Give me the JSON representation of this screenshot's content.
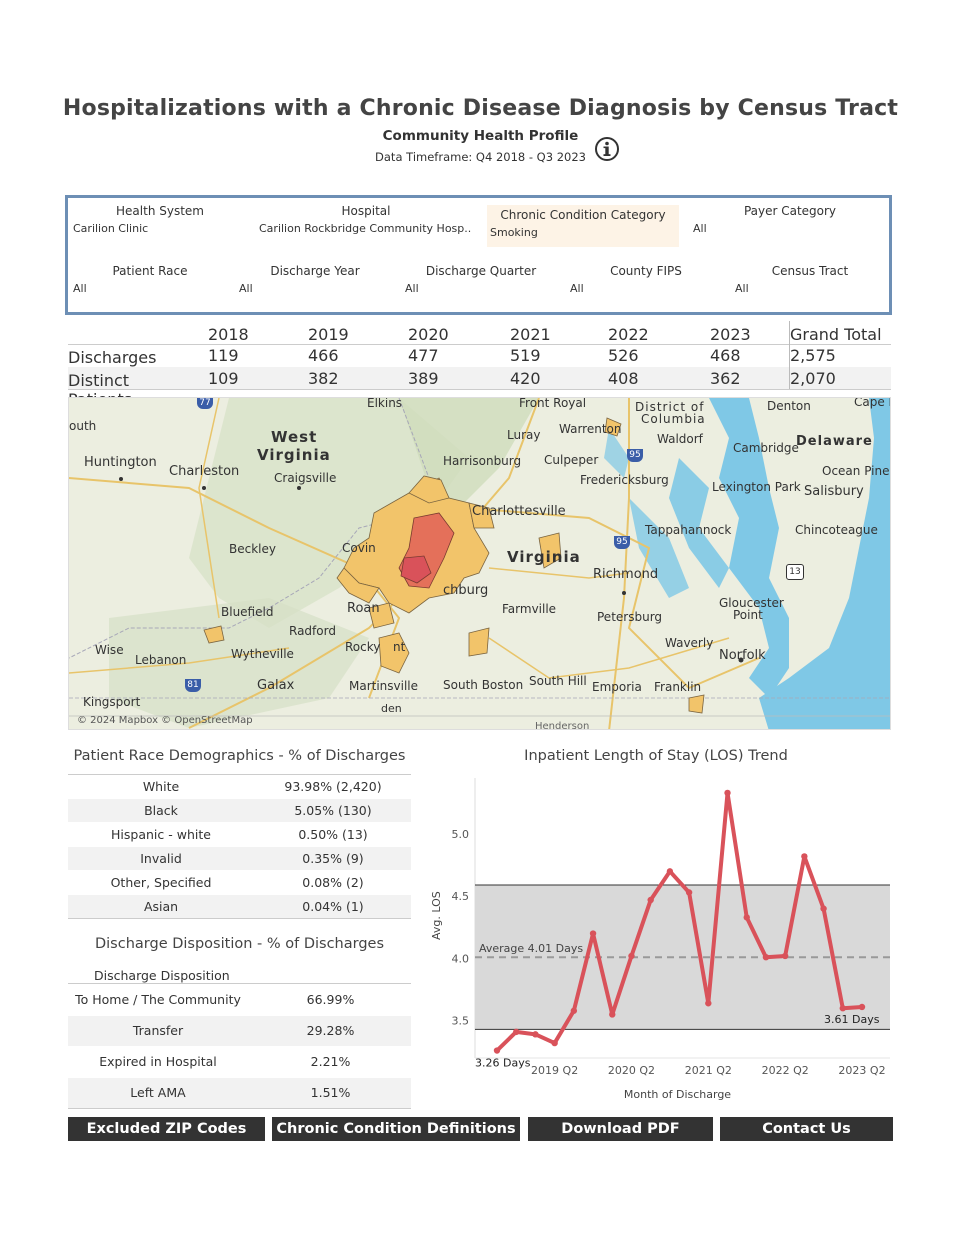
{
  "header": {
    "title": "Hospitalizations with a Chronic Disease Diagnosis by Census Tract",
    "subtitle": "Community Health Profile",
    "timeframe": "Data Timeframe: Q4 2018 - Q3 2023"
  },
  "filters": {
    "health_system": {
      "label": "Health System",
      "value": "Carilion Clinic"
    },
    "hospital": {
      "label": "Hospital",
      "value": "Carilion Rockbridge Community Hosp.."
    },
    "chronic_condition": {
      "label": "Chronic Condition Category",
      "value": "Smoking"
    },
    "payer_category": {
      "label": "Payer Category",
      "value": "All"
    },
    "patient_race": {
      "label": "Patient Race",
      "value": "All"
    },
    "discharge_year": {
      "label": "Discharge Year",
      "value": "All"
    },
    "discharge_quarter": {
      "label": "Discharge Quarter",
      "value": "All"
    },
    "county_fips": {
      "label": "County FIPS",
      "value": "All"
    },
    "census_tract": {
      "label": "Census Tract",
      "value": "All"
    }
  },
  "summary": {
    "columns": [
      "2018",
      "2019",
      "2020",
      "2021",
      "2022",
      "2023",
      "Grand Total"
    ],
    "rows": [
      {
        "label": "Discharges",
        "values": [
          "119",
          "466",
          "477",
          "519",
          "526",
          "468",
          "2,575"
        ]
      },
      {
        "label": "Distinct Patients",
        "values": [
          "109",
          "382",
          "389",
          "420",
          "408",
          "362",
          "2,070"
        ]
      }
    ]
  },
  "map": {
    "attribution": "© 2024 Mapbox © OpenStreetMap",
    "labels": {
      "west_virginia_1": "West",
      "west_virginia_2": "Virginia",
      "virginia": "Virginia",
      "delaware": "Delaware",
      "dc_1": "District of",
      "dc_2": "Columbia",
      "huntington": "Huntington",
      "charleston": "Charleston",
      "craigsville": "Craigsville",
      "beckley": "Beckley",
      "bluefield": "Bluefield",
      "radford": "Radford",
      "wytheville": "Wytheville",
      "lebanon": "Lebanon",
      "wise": "Wise",
      "galax": "Galax",
      "kingsport": "Kingsport",
      "martinsville": "Martinsville",
      "south_boston": "South Boston",
      "south_hill": "South Hill",
      "emporia": "Emporia",
      "franklin": "Franklin",
      "norfolk": "Norfolk",
      "waverly": "Waverly",
      "petersburg": "Petersburg",
      "richmond": "Richmond",
      "farmville": "Farmville",
      "lynchburg": "chburg",
      "roanoke": "Roan",
      "rocky_mount": "Rocky",
      "covington": "Covin",
      "charlottesville": "Charlottesville",
      "harrisonburg": "Harrisonburg",
      "culpeper": "Culpeper",
      "luray": "Luray",
      "warrenton": "Warrenton",
      "front_royal": "Front Royal",
      "elkins": "Elkins",
      "fredericksburg": "Fredericksburg",
      "waldorf": "Waldorf",
      "cambridge": "Cambridge",
      "lexington_park": "Lexington Park",
      "salisbury": "Salisbury",
      "ocean_pines": "Ocean Pines",
      "chincoteague": "Chincoteague",
      "tappahannock": "Tappahannock",
      "gloucester_1": "Gloucester",
      "gloucester_2": "Point",
      "denton": "Denton",
      "cape_may": "Cape M",
      "south": "outh",
      "hwy77": "77",
      "hwy81": "81",
      "hwy95a": "95",
      "hwy95b": "95",
      "hwy13": "13",
      "henderson": "Henderson",
      "eden": "den",
      "mount": "nt"
    }
  },
  "race": {
    "title": "Patient Race Demographics - % of Discharges",
    "rows": [
      {
        "label": "White",
        "value": "93.98% (2,420)"
      },
      {
        "label": "Black",
        "value": "5.05% (130)"
      },
      {
        "label": "Hispanic - white",
        "value": "0.50% (13)"
      },
      {
        "label": "Invalid",
        "value": "0.35% (9)"
      },
      {
        "label": "Other, Specified",
        "value": "0.08% (2)"
      },
      {
        "label": "Asian",
        "value": "0.04% (1)"
      }
    ]
  },
  "disposition": {
    "title": "Discharge Disposition - % of Discharges",
    "column_header": "Discharge Disposition",
    "rows": [
      {
        "label": "To Home / The Community",
        "value": "66.99%"
      },
      {
        "label": "Transfer",
        "value": "29.28%"
      },
      {
        "label": "Expired in Hospital",
        "value": "2.21%"
      },
      {
        "label": "Left AMA",
        "value": "1.51%"
      }
    ]
  },
  "chart_data": {
    "type": "line",
    "title": "Inpatient Length of Stay (LOS) Trend",
    "xlabel": "Month of Discharge",
    "ylabel": "Avg. LOS",
    "ylim": [
      3.2,
      5.45
    ],
    "yticks": [
      "3.5",
      "4.0",
      "4.5",
      "5.0"
    ],
    "xtick_labels": [
      "2019 Q2",
      "2020 Q2",
      "2021 Q2",
      "2022 Q2",
      "2023 Q2"
    ],
    "xtick_index": [
      3,
      7,
      11,
      15,
      19
    ],
    "series": [
      {
        "name": "Avg. LOS",
        "color": "#d9525a",
        "values": [
          3.26,
          3.41,
          3.39,
          3.32,
          3.58,
          4.2,
          3.55,
          4.02,
          4.47,
          4.7,
          4.53,
          3.64,
          5.33,
          4.33,
          4.01,
          4.02,
          4.82,
          4.4,
          3.6,
          3.61
        ]
      }
    ],
    "reference_band": {
      "low": 3.43,
      "high": 4.59,
      "color": "#d9d9d9"
    },
    "average": {
      "value": 4.01,
      "label": "Average 4.01 Days"
    },
    "start_label": "3.26 Days",
    "end_label": "3.61 Days"
  },
  "buttons": {
    "excluded_zip": "Excluded ZIP Codes",
    "definitions": "Chronic Condition Definitions",
    "download": "Download PDF",
    "contact": "Contact Us"
  }
}
